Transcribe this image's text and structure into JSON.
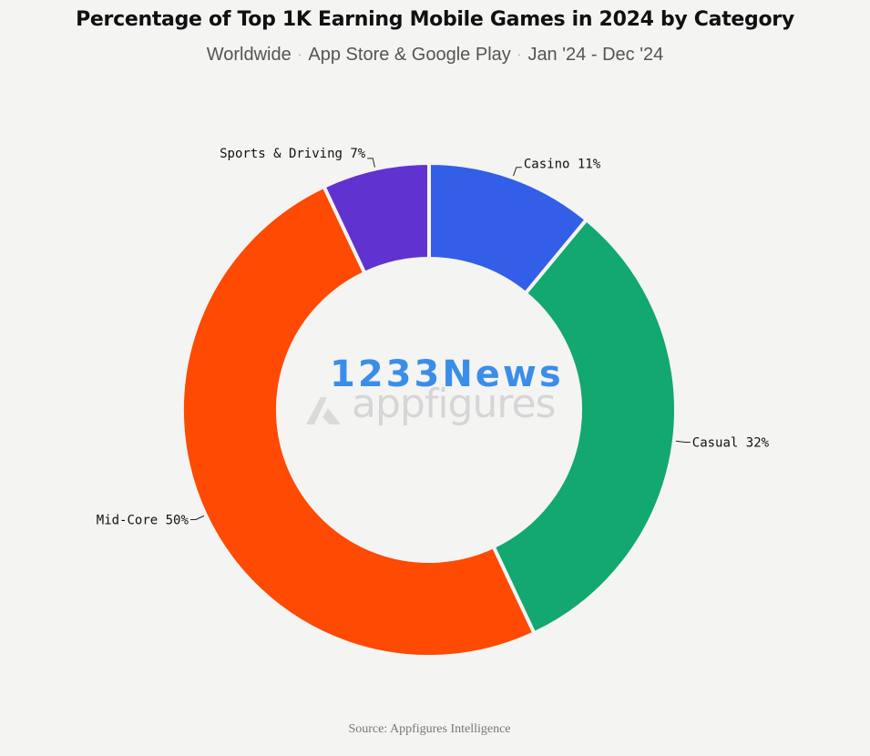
{
  "header": {
    "title": "Percentage of Top 1K Earning Mobile Games in 2024 by Category",
    "subtitle_parts": [
      "Worldwide",
      "App Store & Google Play",
      "Jan '24 - Dec '24"
    ]
  },
  "chart_data": {
    "type": "pie",
    "donut": true,
    "slices": [
      {
        "label": "Casino",
        "value": 11,
        "color": "#335ee7"
      },
      {
        "label": "Casual",
        "value": 32,
        "color": "#12a870"
      },
      {
        "label": "Mid-Core",
        "value": 50,
        "color": "#fe4a03"
      },
      {
        "label": "Sports & Driving",
        "value": 7,
        "color": "#6033d0"
      }
    ],
    "label_format": "{label} {value}%"
  },
  "watermarks": {
    "brand": "appfigures",
    "overlay": "1233News"
  },
  "footer": {
    "source": "Source: Appfigures Intelligence"
  }
}
